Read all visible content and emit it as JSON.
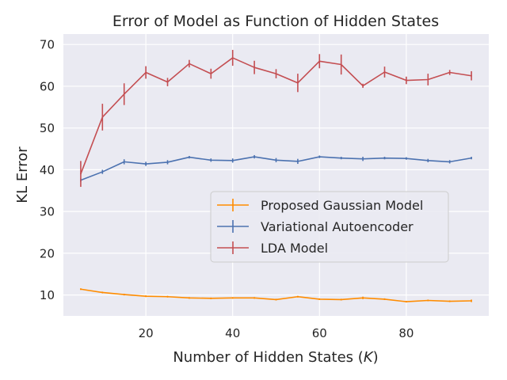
{
  "chart_data": {
    "type": "line",
    "title": "Error of Model as Function of Hidden States",
    "xlabel_prefix": "Number of Hidden States (",
    "xlabel_var": "K",
    "xlabel_suffix": ")",
    "ylabel": "KL Error",
    "xlim": [
      1,
      99
    ],
    "ylim": [
      5,
      72.5
    ],
    "x_ticks": [
      20,
      40,
      60,
      80
    ],
    "y_ticks": [
      10,
      20,
      30,
      40,
      50,
      60,
      70
    ],
    "grid": true,
    "legend_position": "center-right",
    "x": [
      5,
      10,
      15,
      20,
      25,
      30,
      35,
      40,
      45,
      50,
      55,
      60,
      65,
      70,
      75,
      80,
      85,
      90,
      95
    ],
    "series": [
      {
        "name": "Proposed Gaussian Model",
        "color": "#ff8c00",
        "values": [
          11.4,
          10.6,
          10.1,
          9.7,
          9.6,
          9.3,
          9.2,
          9.3,
          9.3,
          8.9,
          9.6,
          9.0,
          8.9,
          9.3,
          9.0,
          8.4,
          8.7,
          8.5,
          8.6
        ],
        "errors": [
          0.2,
          0.2,
          0.2,
          0.2,
          0.2,
          0.2,
          0.2,
          0.2,
          0.2,
          0.2,
          0.2,
          0.2,
          0.2,
          0.3,
          0.2,
          0.2,
          0.2,
          0.2,
          0.3
        ]
      },
      {
        "name": "Variational Autoencoder",
        "color": "#4c72b0",
        "values": [
          37.5,
          39.5,
          41.9,
          41.4,
          41.8,
          43.0,
          42.3,
          42.2,
          43.1,
          42.3,
          42.0,
          43.1,
          42.8,
          42.6,
          42.8,
          42.7,
          42.2,
          41.9,
          42.8
        ],
        "errors": [
          0.4,
          0.5,
          0.6,
          0.5,
          0.5,
          0.3,
          0.4,
          0.5,
          0.4,
          0.5,
          0.6,
          0.3,
          0.3,
          0.5,
          0.3,
          0.3,
          0.4,
          0.4,
          0.3
        ]
      },
      {
        "name": "LDA Model",
        "color": "#c44e52",
        "values": [
          39.0,
          52.6,
          58.1,
          63.3,
          61.0,
          65.4,
          63.0,
          66.8,
          64.5,
          63.0,
          60.8,
          66.0,
          65.2,
          60.1,
          63.4,
          61.4,
          61.6,
          63.3,
          62.5
        ],
        "errors": [
          3.1,
          3.2,
          2.6,
          1.5,
          1.0,
          0.9,
          1.2,
          1.9,
          1.6,
          1.1,
          2.2,
          1.7,
          2.4,
          0.5,
          1.3,
          0.9,
          1.4,
          0.6,
          1.1
        ]
      }
    ]
  }
}
